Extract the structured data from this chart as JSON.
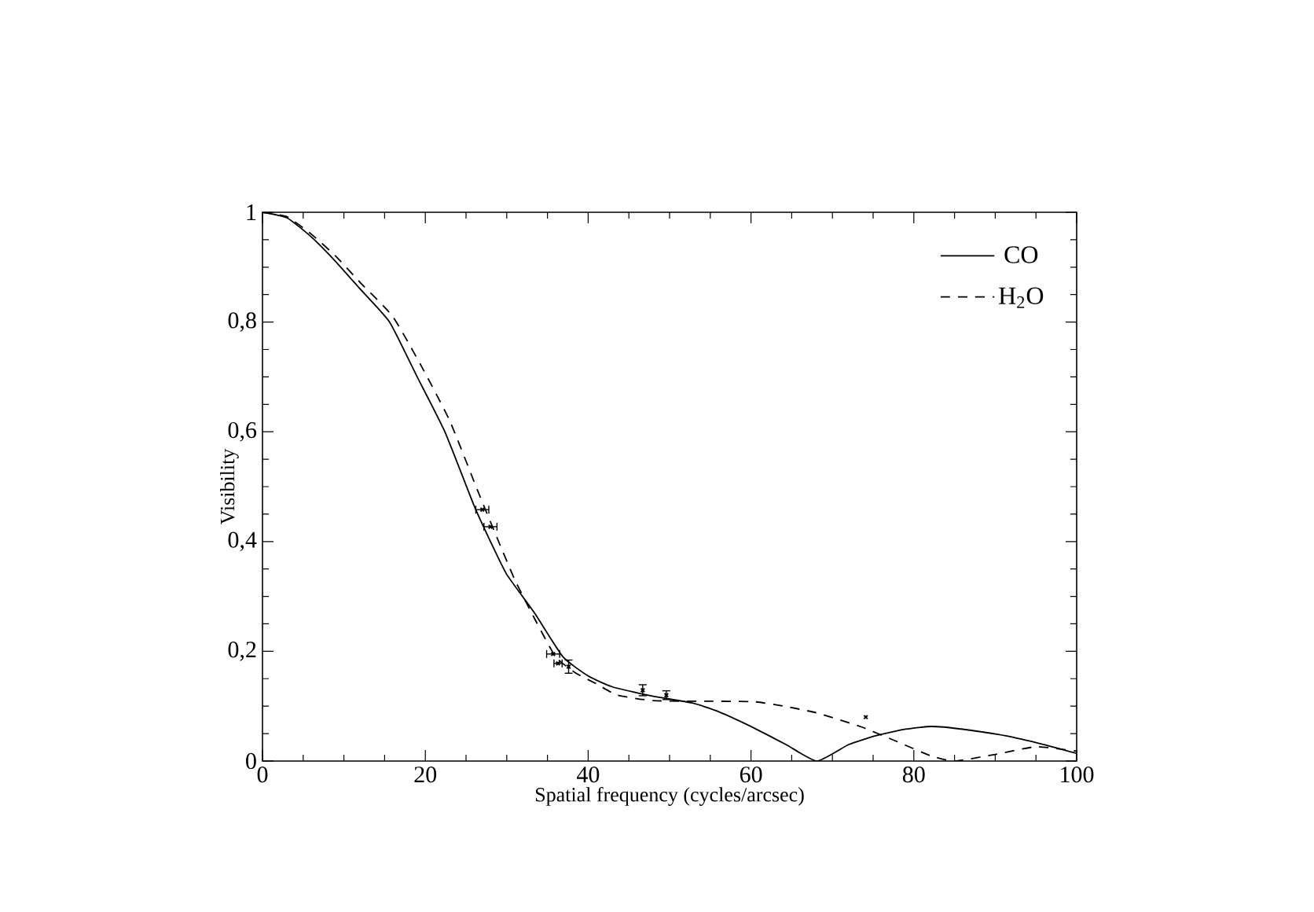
{
  "chart_data": {
    "type": "line",
    "xlabel": "Spatial frequency (cycles/arcsec)",
    "ylabel": "Visibility",
    "xlim": [
      0,
      100
    ],
    "ylim": [
      0,
      1
    ],
    "xticks": [
      0,
      20,
      40,
      60,
      80,
      100
    ],
    "yticks": [
      0,
      {
        "value": 0.2,
        "label": "0,2"
      },
      {
        "value": 0.4,
        "label": "0,4"
      },
      {
        "value": 0.6,
        "label": "0,6"
      },
      {
        "value": 0.8,
        "label": "0,8"
      },
      1
    ],
    "grid": false,
    "legend": "top right",
    "series": [
      {
        "name": "CO",
        "type": "line",
        "color": "#000000",
        "line_style": "solid",
        "marker": "none",
        "x": [
          0,
          3,
          6,
          9,
          12,
          15.6,
          19,
          22.4,
          26,
          28,
          30,
          33.4,
          36.9,
          40,
          43,
          48,
          52.7,
          56,
          60.4,
          64.3,
          68.1,
          72,
          75.3,
          79,
          82.2,
          86,
          91.3,
          96,
          100
        ],
        "values": [
          1,
          0.99,
          0.955,
          0.91,
          0.86,
          0.8,
          0.7,
          0.6,
          0.465,
          0.4,
          0.34,
          0.27,
          0.19,
          0.155,
          0.135,
          0.118,
          0.106,
          0.09,
          0.06,
          0.03,
          0,
          0.03,
          0.046,
          0.058,
          0.063,
          0.058,
          0.046,
          0.03,
          0.014
        ]
      },
      {
        "name": "H$_{2}$O",
        "type": "line",
        "color": "#000000",
        "line_style": "dashed",
        "marker": "none",
        "x": [
          0,
          3,
          6,
          9,
          12,
          16,
          19.5,
          23,
          26.5,
          29,
          31,
          33.4,
          36,
          38.5,
          41.1,
          43.6,
          48,
          54.6,
          60.4,
          64,
          68,
          73.4,
          78,
          82,
          85,
          90,
          95,
          100
        ],
        "values": [
          1,
          0.992,
          0.96,
          0.92,
          0.872,
          0.81,
          0.72,
          0.62,
          0.49,
          0.4,
          0.33,
          0.26,
          0.19,
          0.16,
          0.14,
          0.12,
          0.11,
          0.109,
          0.108,
          0.1,
          0.088,
          0.063,
          0.035,
          0.01,
          0,
          0.012,
          0.026,
          0.018
        ]
      },
      {
        "type": "scatter",
        "color": "#000000",
        "marker": "cross",
        "x": [
          27.0,
          28.0,
          35.7,
          36.3,
          37.6,
          46.7,
          49.6,
          74.1
        ],
        "values": [
          0.458,
          0.427,
          0.195,
          0.178,
          0.172,
          0.129,
          0.12,
          0.08
        ],
        "errors": [
          null,
          null,
          null,
          null,
          0.012,
          0.01,
          0.008,
          null
        ],
        "xerrors": [
          0.8,
          0.8,
          0.8,
          0.5,
          null,
          null,
          null,
          null
        ]
      }
    ]
  }
}
